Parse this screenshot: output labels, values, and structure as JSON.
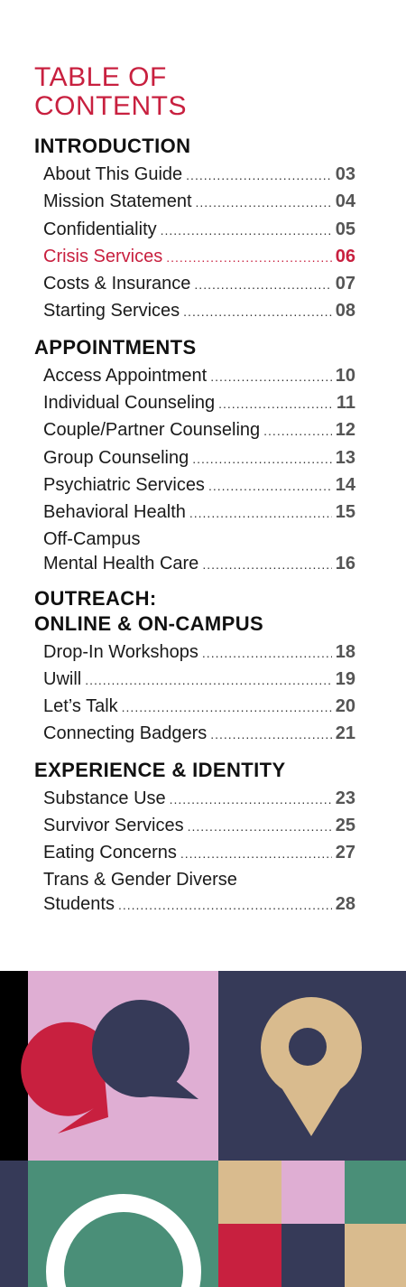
{
  "title_line1": "TABLE OF",
  "title_line2": "CONTENTS",
  "sections": [
    {
      "heading_lines": [
        "INTRODUCTION"
      ],
      "entries": [
        {
          "label": "About This Guide",
          "page": "03"
        },
        {
          "label": "Mission Statement",
          "page": "04"
        },
        {
          "label": "Confidentiality",
          "page": "05"
        },
        {
          "label": "Crisis Services",
          "page": "06",
          "active": true
        },
        {
          "label": "Costs & Insurance",
          "page": "07"
        },
        {
          "label": "Starting Services",
          "page": "08"
        }
      ]
    },
    {
      "heading_lines": [
        "APPOINTMENTS"
      ],
      "entries": [
        {
          "label": "Access Appointment",
          "page": "10"
        },
        {
          "label": "Individual Counseling",
          "page": "11"
        },
        {
          "label": "Couple/Partner Counseling",
          "page": "12"
        },
        {
          "label": "Group Counseling",
          "page": "13"
        },
        {
          "label": "Psychiatric Services",
          "page": "14"
        },
        {
          "label": "Behavioral Health",
          "page": "15"
        },
        {
          "label_lines": [
            "Off-Campus",
            "Mental Health Care"
          ],
          "page": "16"
        }
      ]
    },
    {
      "heading_lines": [
        "OUTREACH:",
        "ONLINE & ON-CAMPUS"
      ],
      "entries": [
        {
          "label": "Drop-In Workshops",
          "page": "18"
        },
        {
          "label": "Uwill",
          "page": "19"
        },
        {
          "label": "Let’s Talk",
          "page": "20"
        },
        {
          "label": "Connecting Badgers",
          "page": "21"
        }
      ]
    },
    {
      "heading_lines": [
        "EXPERIENCE & IDENTITY"
      ],
      "entries": [
        {
          "label": "Substance Use",
          "page": "23"
        },
        {
          "label": "Survivor Services",
          "page": "25"
        },
        {
          "label": "Eating Concerns",
          "page": "27"
        },
        {
          "label_lines": [
            "Trans & Gender Diverse",
            "Students"
          ],
          "page": "28"
        }
      ]
    }
  ],
  "colors": {
    "accent_red": "#c8203f",
    "navy": "#363a58",
    "pink": "#dfaed3",
    "green": "#4a8f78",
    "tan": "#d9bb8e",
    "black": "#000000"
  },
  "art_icons": [
    "chat-bubbles-icon",
    "map-pin-icon",
    "ring-icon"
  ]
}
